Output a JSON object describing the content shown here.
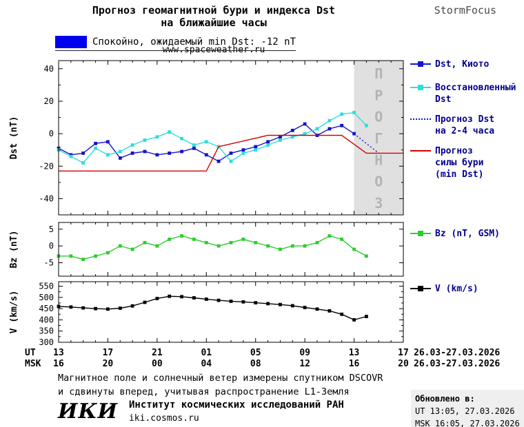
{
  "header": {
    "title_line1": "Прогноз геомагнитной бури и индекса Dst",
    "title_line2": "на ближайшие часы",
    "site": "www.spaceweather.ru",
    "brand": "StormFocus"
  },
  "status": {
    "swatch_color": "#0000ee",
    "text": "Спокойно, ожидаемый min Dst: -12 nT"
  },
  "forecast_band": {
    "label": "ПРОГНОЗ",
    "color": "#e0e0e0",
    "text_color": "#b3b3b3"
  },
  "legend": {
    "dst_kyoto": "Dst, Киото",
    "restored": "Восстановленный\nDst",
    "forecast_dst": "Прогноз Dst\nна 2-4 часа",
    "forecast_storm": "Прогноз\nсилы бури\n(min Dst)",
    "bz": "Bz (nT, GSM)",
    "v": "V (km/s)"
  },
  "xaxis": {
    "hours_range": [
      0,
      28
    ],
    "tick_hours": [
      0,
      4,
      8,
      12,
      16,
      20,
      24,
      28
    ],
    "ut_label": "UT",
    "msk_label": "MSK",
    "ut_ticks": [
      "13",
      "17",
      "21",
      "01",
      "05",
      "09",
      "13",
      "17"
    ],
    "msk_ticks": [
      "16",
      "20",
      "00",
      "04",
      "08",
      "12",
      "16",
      "20"
    ],
    "date_range": "26.03-27.03.2026"
  },
  "chart_data": [
    {
      "type": "line",
      "panel": "dst",
      "ylabel": "Dst (nT)",
      "ylim": [
        -50,
        45
      ],
      "yticks": [
        -40,
        -20,
        0,
        20,
        40
      ],
      "yticks_minor": [
        -30,
        -10,
        10,
        30
      ],
      "forecast_region": [
        24,
        28
      ],
      "series": [
        {
          "id": "dst-kyoto-line",
          "name": "Dst, Киото",
          "color": "#1414cc",
          "marker": "square",
          "x": [
            0,
            1,
            2,
            3,
            4,
            5,
            6,
            7,
            8,
            9,
            10,
            11,
            12,
            13,
            14,
            15,
            16,
            17,
            18,
            19,
            20,
            21,
            22,
            23,
            24
          ],
          "values": [
            -9,
            -13,
            -12,
            -6,
            -5,
            -15,
            -12,
            -11,
            -13,
            -12,
            -11,
            -9,
            -13,
            -17,
            -12,
            -10,
            -8,
            -5,
            -2,
            2,
            6,
            -1,
            3,
            5,
            0
          ]
        },
        {
          "id": "restored-dst-line",
          "name": "Восстановленный Dst",
          "color": "#2bdede",
          "marker": "square",
          "x": [
            0,
            1,
            2,
            3,
            4,
            5,
            6,
            7,
            8,
            9,
            10,
            11,
            12,
            13,
            14,
            15,
            16,
            17,
            18,
            19,
            20,
            21,
            22,
            23,
            24,
            25
          ],
          "values": [
            -10,
            -14,
            -18,
            -9,
            -13,
            -11,
            -7,
            -4,
            -2,
            1,
            -3,
            -7,
            -5,
            -8,
            -17,
            -12,
            -10,
            -7,
            -4,
            -2,
            0,
            3,
            8,
            12,
            13,
            5
          ]
        },
        {
          "id": "forecast-dst-line",
          "name": "Прогноз Dst на 2-4 часа",
          "color": "#1414cc",
          "style": "dotted",
          "x": [
            24,
            25,
            26
          ],
          "values": [
            0,
            -6,
            -12
          ]
        },
        {
          "id": "storm-forecast-line",
          "name": "Прогноз силы бури (min Dst)",
          "color": "#d40000",
          "x": [
            0,
            12,
            13,
            17,
            23,
            25,
            28
          ],
          "values": [
            -23,
            -23,
            -8,
            -1,
            -1,
            -12,
            -12
          ]
        }
      ]
    },
    {
      "type": "line",
      "panel": "bz",
      "ylabel": "Bz (nT)",
      "ylim": [
        -9,
        7
      ],
      "yticks": [
        -5,
        0,
        5
      ],
      "series": [
        {
          "id": "bz-line",
          "name": "Bz (nT, GSM)",
          "color": "#2ecc2e",
          "marker": "square",
          "x": [
            0,
            1,
            2,
            3,
            4,
            5,
            6,
            7,
            8,
            9,
            10,
            11,
            12,
            13,
            14,
            15,
            16,
            17,
            18,
            19,
            20,
            21,
            22,
            23,
            24,
            25
          ],
          "values": [
            -3,
            -3,
            -4,
            -3,
            -2,
            0,
            -1,
            1,
            0,
            2,
            3,
            2,
            1,
            0,
            1,
            2,
            1,
            0,
            -1,
            0,
            0,
            1,
            3,
            2,
            -1,
            -3
          ]
        }
      ]
    },
    {
      "type": "line",
      "panel": "v",
      "ylabel": "V (km/s)",
      "ylim": [
        300,
        570
      ],
      "yticks": [
        300,
        350,
        400,
        450,
        500,
        550
      ],
      "yticks_minor": [
        325,
        375,
        425,
        475,
        525
      ],
      "series": [
        {
          "id": "v-line",
          "name": "V (km/s)",
          "color": "#000000",
          "marker": "square",
          "x": [
            0,
            1,
            2,
            3,
            4,
            5,
            6,
            7,
            8,
            9,
            10,
            11,
            12,
            13,
            14,
            15,
            16,
            17,
            18,
            19,
            20,
            21,
            22,
            23,
            24,
            25
          ],
          "values": [
            460,
            457,
            453,
            450,
            448,
            452,
            462,
            478,
            495,
            505,
            503,
            498,
            492,
            487,
            483,
            480,
            476,
            472,
            468,
            463,
            455,
            448,
            440,
            425,
            400,
            415
          ]
        }
      ]
    }
  ],
  "footnote": {
    "line1": "Магнитное поле и солнечный ветер измерены спутником DSCOVR",
    "line2": "и сдвинуты вперед, учитывая распространение L1-Земля"
  },
  "footer": {
    "logo": "ИКИ",
    "institute": "Институт космических исследований РАН",
    "site": "iki.cosmos.ru",
    "updated_label": "Обновлено в:",
    "updated_ut": "UT 13:05, 27.03.2026",
    "updated_msk": "MSK 16:05, 27.03.2026"
  }
}
